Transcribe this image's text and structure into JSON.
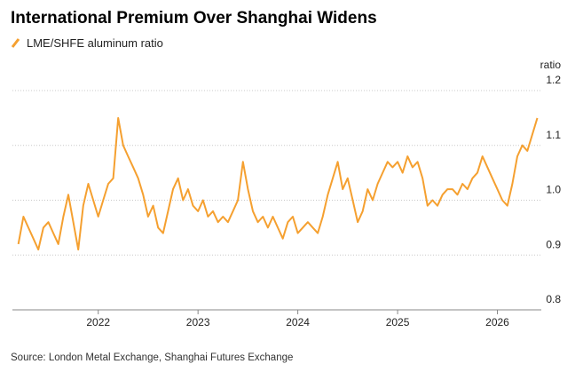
{
  "chart_data": {
    "type": "line",
    "title": "International Premium Over Shanghai Widens",
    "y_label": "ratio",
    "source": "Source: London Metal Exchange, Shanghai Futures Exchange",
    "x": [
      2021.2,
      2021.25,
      2021.3,
      2021.35,
      2021.4,
      2021.45,
      2021.5,
      2021.55,
      2021.6,
      2021.65,
      2021.7,
      2021.75,
      2021.8,
      2021.85,
      2021.9,
      2021.95,
      2022.0,
      2022.05,
      2022.1,
      2022.15,
      2022.2,
      2022.25,
      2022.3,
      2022.35,
      2022.4,
      2022.45,
      2022.5,
      2022.55,
      2022.6,
      2022.65,
      2022.7,
      2022.75,
      2022.8,
      2022.85,
      2022.9,
      2022.95,
      2023.0,
      2023.05,
      2023.1,
      2023.15,
      2023.2,
      2023.25,
      2023.3,
      2023.35,
      2023.4,
      2023.45,
      2023.5,
      2023.55,
      2023.6,
      2023.65,
      2023.7,
      2023.75,
      2023.8,
      2023.85,
      2023.9,
      2023.95,
      2024.0,
      2024.05,
      2024.1,
      2024.15,
      2024.2,
      2024.25,
      2024.3,
      2024.35,
      2024.4,
      2024.45,
      2024.5,
      2024.55,
      2024.6,
      2024.65,
      2024.7,
      2024.75,
      2024.8,
      2024.85,
      2024.9,
      2024.95,
      2025.0,
      2025.05,
      2025.1,
      2025.15,
      2025.2,
      2025.25,
      2025.3,
      2025.35,
      2025.4,
      2025.45,
      2025.5,
      2025.55,
      2025.6,
      2025.65,
      2025.7,
      2025.75,
      2025.8,
      2025.85,
      2025.9,
      2025.95,
      2026.0,
      2026.05,
      2026.1,
      2026.15,
      2026.2,
      2026.25,
      2026.3,
      2026.35,
      2026.4
    ],
    "series": [
      {
        "name": "LME/SHFE aluminum ratio",
        "color": "#f5a030",
        "values": [
          0.92,
          0.97,
          0.95,
          0.93,
          0.91,
          0.95,
          0.96,
          0.94,
          0.92,
          0.97,
          1.01,
          0.96,
          0.91,
          0.99,
          1.03,
          1.0,
          0.97,
          1.0,
          1.03,
          1.04,
          1.15,
          1.1,
          1.08,
          1.06,
          1.04,
          1.01,
          0.97,
          0.99,
          0.95,
          0.94,
          0.98,
          1.02,
          1.04,
          1.0,
          1.02,
          0.99,
          0.98,
          1.0,
          0.97,
          0.98,
          0.96,
          0.97,
          0.96,
          0.98,
          1.0,
          1.07,
          1.02,
          0.98,
          0.96,
          0.97,
          0.95,
          0.97,
          0.95,
          0.93,
          0.96,
          0.97,
          0.94,
          0.95,
          0.96,
          0.95,
          0.94,
          0.97,
          1.01,
          1.04,
          1.07,
          1.02,
          1.04,
          1.0,
          0.96,
          0.98,
          1.02,
          1.0,
          1.03,
          1.05,
          1.07,
          1.06,
          1.07,
          1.05,
          1.08,
          1.06,
          1.07,
          1.04,
          0.99,
          1.0,
          0.99,
          1.01,
          1.02,
          1.02,
          1.01,
          1.03,
          1.02,
          1.04,
          1.05,
          1.08,
          1.06,
          1.04,
          1.02,
          1.0,
          0.99,
          1.03,
          1.08,
          1.1,
          1.09,
          1.12,
          1.15
        ]
      }
    ],
    "xlim": [
      2021.14,
      2026.44
    ],
    "xticks": [
      2022,
      2023,
      2024,
      2025,
      2026
    ],
    "ylim": [
      0.8,
      1.2
    ],
    "yticks": [
      0.8,
      0.9,
      {
        "value": 1,
        "label": "1.0"
      },
      1.1,
      1.2
    ],
    "grid": true
  }
}
